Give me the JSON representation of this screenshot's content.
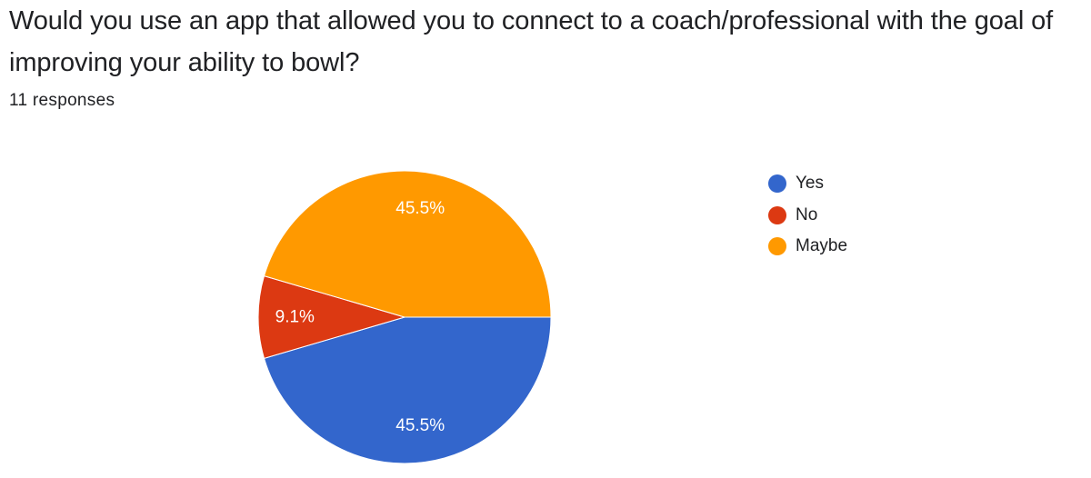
{
  "question": {
    "title": "Would you use an app that allowed you to connect to a coach/professional with the goal of improving your ability to bowl?",
    "responses": "11 responses"
  },
  "colors": {
    "Yes": "#3366cc",
    "No": "#dc3912",
    "Maybe": "#ff9900"
  },
  "chart_data": {
    "type": "pie",
    "title": "",
    "slices": [
      {
        "label": "Yes",
        "value": 45.5,
        "display": "45.5%"
      },
      {
        "label": "No",
        "value": 9.1,
        "display": "9.1%"
      },
      {
        "label": "Maybe",
        "value": 45.5,
        "display": "45.5%"
      }
    ],
    "legend": {
      "position": "right",
      "items": [
        "Yes",
        "No",
        "Maybe"
      ]
    }
  }
}
